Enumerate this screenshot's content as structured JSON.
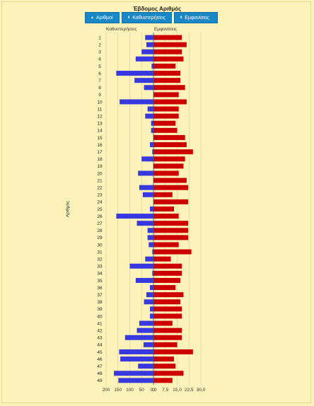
{
  "header": {
    "title": "Έβδομος Αριθμός",
    "buttons": [
      {
        "label": "Αριθμοί",
        "icon": "arrow-up-icon"
      },
      {
        "label": "Καθυστερήσεις",
        "icon": "sort-icon"
      },
      {
        "label": "Εμφανίσεις",
        "icon": "sort-icon"
      }
    ]
  },
  "chart_data": {
    "type": "bar",
    "ylabel": "Αριθμός",
    "left_series": {
      "name": "Καθυστερήσεις",
      "color": "#3838e0",
      "axis_ticks": [
        "200",
        "150",
        "100",
        "50",
        "0"
      ],
      "xlim": [
        0,
        200
      ],
      "values": [
        35,
        30,
        50,
        75,
        8,
        157,
        80,
        40,
        0,
        143,
        25,
        35,
        10,
        10,
        0,
        15,
        5,
        50,
        0,
        65,
        0,
        60,
        45,
        0,
        15,
        157,
        70,
        25,
        25,
        20,
        5,
        35,
        100,
        5,
        75,
        15,
        30,
        40,
        15,
        15,
        60,
        70,
        120,
        42,
        145,
        140,
        65,
        167,
        148
      ]
    },
    "right_series": {
      "name": "Εμφανίσεις",
      "color": "#cc0000",
      "axis_ticks": [
        "0,0",
        "7,5",
        "15,0",
        "22,5",
        "30,0"
      ],
      "xlim": [
        0,
        30
      ],
      "values": [
        18,
        21,
        18,
        19,
        14,
        17,
        17,
        20,
        16,
        21,
        16,
        16,
        14,
        15,
        20,
        21,
        25,
        20,
        19,
        16,
        21,
        22,
        12,
        22,
        13,
        16,
        22,
        22,
        22,
        16,
        24,
        11,
        18,
        18,
        17,
        14,
        19,
        17,
        18,
        18,
        12,
        18,
        18,
        15,
        25,
        13,
        14,
        19,
        12
      ]
    },
    "categories": [
      "1",
      "2",
      "3",
      "4",
      "5",
      "6",
      "7",
      "8",
      "9",
      "10",
      "11",
      "12",
      "13",
      "14",
      "15",
      "16",
      "17",
      "18",
      "19",
      "20",
      "21",
      "22",
      "23",
      "24",
      "25",
      "26",
      "27",
      "28",
      "29",
      "30",
      "31",
      "32",
      "33",
      "34",
      "35",
      "36",
      "37",
      "38",
      "39",
      "40",
      "41",
      "42",
      "43",
      "44",
      "45",
      "46",
      "47",
      "48",
      "49"
    ],
    "grid": true
  }
}
